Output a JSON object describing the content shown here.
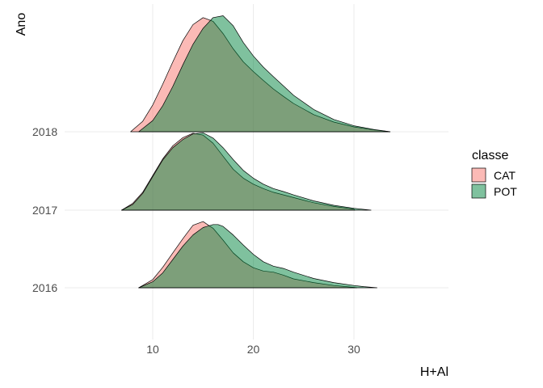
{
  "chart_data": {
    "type": "ridgeline-density",
    "title": "",
    "xlabel": "H+Al",
    "ylabel": "Ano",
    "xlim": [
      2,
      40
    ],
    "x_ticks": [
      10,
      20,
      30
    ],
    "categories": [
      "2016",
      "2017",
      "2018"
    ],
    "grid": true,
    "legend": {
      "title": "classe",
      "placement": "right",
      "entries": [
        {
          "name": "CAT",
          "color": "#F8766D"
        },
        {
          "name": "POT",
          "color": "#00843D"
        }
      ]
    },
    "series": [
      {
        "name": "CAT",
        "color": "#F8766D",
        "ridges": [
          {
            "category": "2016",
            "x": [
              8.6,
              10,
              11,
              12,
              13,
              14,
              15,
              16,
              17,
              18,
              19,
              20,
              21,
              22,
              23,
              24,
              26,
              28,
              30,
              30.3
            ],
            "y": [
              0.0,
              0.22,
              0.55,
              0.94,
              1.32,
              1.68,
              1.78,
              1.6,
              1.28,
              0.94,
              0.7,
              0.54,
              0.45,
              0.42,
              0.34,
              0.24,
              0.14,
              0.06,
              0.01,
              0.0
            ]
          },
          {
            "category": "2017",
            "x": [
              6.9,
              8,
              9,
              10,
              11,
              12,
              13,
              14,
              15,
              16,
              17,
              18,
              19,
              20,
              21,
              22,
              23,
              24,
              26,
              28,
              30,
              30.1
            ],
            "y": [
              0.0,
              0.18,
              0.48,
              0.93,
              1.38,
              1.73,
              1.95,
              2.07,
              2.02,
              1.8,
              1.45,
              1.1,
              0.86,
              0.7,
              0.58,
              0.48,
              0.41,
              0.34,
              0.2,
              0.1,
              0.03,
              0.0
            ]
          },
          {
            "category": "2018",
            "x": [
              7.8,
              9,
              10,
              11,
              12,
              13,
              14,
              15,
              16,
              17,
              18,
              19,
              20,
              21,
              22,
              23,
              24,
              26,
              28,
              30,
              32,
              33.6
            ],
            "y": [
              0.0,
              0.28,
              0.72,
              1.28,
              1.88,
              2.45,
              2.88,
              3.07,
              2.97,
              2.64,
              2.23,
              1.88,
              1.62,
              1.38,
              1.15,
              0.95,
              0.76,
              0.46,
              0.26,
              0.13,
              0.05,
              0.0
            ]
          }
        ]
      },
      {
        "name": "POT",
        "color": "#00843D",
        "ridges": [
          {
            "category": "2016",
            "x": [
              8.6,
              10,
              11,
              12,
              13,
              14,
              15,
              16,
              16.5,
              17,
              18,
              19,
              20,
              21,
              22,
              23,
              24,
              26,
              28,
              30,
              31,
              32.3
            ],
            "y": [
              0.0,
              0.16,
              0.4,
              0.76,
              1.12,
              1.42,
              1.62,
              1.7,
              1.7,
              1.65,
              1.42,
              1.15,
              0.9,
              0.7,
              0.58,
              0.52,
              0.42,
              0.25,
              0.14,
              0.06,
              0.03,
              0.0
            ]
          },
          {
            "category": "2017",
            "x": [
              6.9,
              8,
              9,
              10,
              11,
              12,
              13,
              14,
              15,
              16,
              17,
              18,
              19,
              20,
              21,
              22,
              23,
              24,
              26,
              28,
              30,
              31.7
            ],
            "y": [
              0.0,
              0.15,
              0.45,
              0.9,
              1.35,
              1.68,
              1.9,
              2.05,
              2.08,
              1.94,
              1.68,
              1.36,
              1.07,
              0.86,
              0.7,
              0.58,
              0.5,
              0.41,
              0.25,
              0.13,
              0.05,
              0.0
            ]
          },
          {
            "category": "2018",
            "x": [
              8.6,
              10,
              11,
              12,
              13,
              14,
              15,
              16,
              17,
              18,
              19,
              20,
              21,
              22,
              23,
              24,
              26,
              28,
              30,
              32,
              33.6
            ],
            "y": [
              0.0,
              0.3,
              0.7,
              1.22,
              1.8,
              2.35,
              2.78,
              3.07,
              3.12,
              2.85,
              2.4,
              2.04,
              1.74,
              1.48,
              1.23,
              0.98,
              0.6,
              0.33,
              0.16,
              0.06,
              0.0
            ]
          }
        ]
      }
    ]
  }
}
